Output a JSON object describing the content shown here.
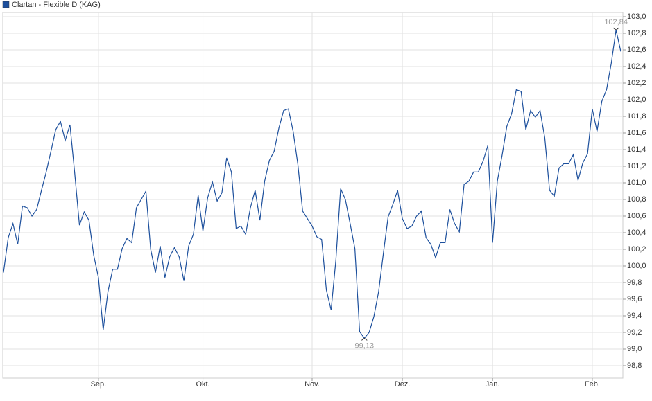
{
  "chart_data": {
    "type": "line",
    "categories": [
      null,
      null,
      null,
      null,
      null,
      null,
      null,
      null,
      null,
      null,
      null,
      null,
      null,
      null,
      null,
      null,
      null,
      null,
      null,
      null,
      "Sep.",
      null,
      null,
      null,
      null,
      null,
      null,
      null,
      null,
      null,
      null,
      null,
      null,
      null,
      null,
      null,
      null,
      null,
      null,
      null,
      null,
      null,
      "Okt.",
      null,
      null,
      null,
      null,
      null,
      null,
      null,
      null,
      null,
      null,
      null,
      null,
      null,
      null,
      null,
      null,
      null,
      null,
      null,
      null,
      null,
      null,
      "Nov.",
      null,
      null,
      null,
      null,
      null,
      null,
      null,
      null,
      null,
      null,
      null,
      null,
      null,
      null,
      null,
      null,
      null,
      null,
      "Dez.",
      null,
      null,
      null,
      null,
      null,
      null,
      null,
      null,
      null,
      null,
      null,
      null,
      null,
      null,
      null,
      null,
      null,
      null,
      "Jan.",
      null,
      null,
      null,
      null,
      null,
      null,
      null,
      null,
      null,
      null,
      null,
      null,
      null,
      null,
      null,
      null,
      null,
      null,
      null,
      null,
      "Feb.",
      null,
      null,
      null,
      null,
      null,
      null
    ],
    "series": [
      {
        "name": "Clartan - Flexible D (KAG)",
        "color": "#1c4f9c",
        "values": [
          99.92,
          100.34,
          100.51,
          100.26,
          100.72,
          100.7,
          100.6,
          100.68,
          100.91,
          101.13,
          101.38,
          101.64,
          101.74,
          101.51,
          101.7,
          101.12,
          100.49,
          100.65,
          100.55,
          100.13,
          99.86,
          99.23,
          99.69,
          99.96,
          99.96,
          100.21,
          100.33,
          100.28,
          100.7,
          100.8,
          100.9,
          100.2,
          99.92,
          100.24,
          99.86,
          100.11,
          100.22,
          100.11,
          99.82,
          100.24,
          100.38,
          100.85,
          100.42,
          100.82,
          101.01,
          100.78,
          100.88,
          101.3,
          101.13,
          100.45,
          100.48,
          100.38,
          100.7,
          100.91,
          100.55,
          101.02,
          101.27,
          101.38,
          101.66,
          101.87,
          101.89,
          101.62,
          101.22,
          100.66,
          100.57,
          100.48,
          100.35,
          100.32,
          99.71,
          99.47,
          100.07,
          100.93,
          100.8,
          100.51,
          100.21,
          99.21,
          99.13,
          99.2,
          99.39,
          99.69,
          100.15,
          100.59,
          100.74,
          100.91,
          100.57,
          100.45,
          100.48,
          100.6,
          100.66,
          100.34,
          100.26,
          100.1,
          100.28,
          100.28,
          100.68,
          100.51,
          100.41,
          100.98,
          101.02,
          101.13,
          101.13,
          101.26,
          101.45,
          100.28,
          101.02,
          101.33,
          101.68,
          101.83,
          102.12,
          102.1,
          101.64,
          101.87,
          101.79,
          101.87,
          101.54,
          100.91,
          100.84,
          101.18,
          101.23,
          101.23,
          101.34,
          101.03,
          101.24,
          101.35,
          101.89,
          101.62,
          101.98,
          102.12,
          102.44,
          102.84,
          102.58
        ],
        "value_labels": [
          null,
          null,
          null,
          null,
          null,
          null,
          null,
          null,
          null,
          null,
          null,
          null,
          null,
          null,
          null,
          null,
          null,
          null,
          null,
          null,
          null,
          null,
          null,
          null,
          null,
          null,
          null,
          null,
          null,
          null,
          null,
          null,
          null,
          null,
          null,
          null,
          null,
          null,
          null,
          null,
          null,
          null,
          null,
          null,
          null,
          null,
          null,
          null,
          null,
          null,
          null,
          null,
          null,
          null,
          null,
          null,
          null,
          null,
          null,
          null,
          null,
          null,
          null,
          null,
          null,
          null,
          null,
          null,
          null,
          null,
          null,
          null,
          null,
          null,
          null,
          null,
          "99,13",
          null,
          null,
          null,
          null,
          null,
          null,
          null,
          null,
          null,
          null,
          null,
          null,
          null,
          null,
          null,
          null,
          null,
          null,
          null,
          null,
          null,
          null,
          null,
          null,
          null,
          null,
          null,
          null,
          null,
          null,
          null,
          null,
          null,
          null,
          null,
          null,
          null,
          null,
          null,
          null,
          null,
          null,
          null,
          null,
          null,
          null,
          null,
          null,
          null,
          null,
          null,
          null,
          "102,84",
          null
        ]
      }
    ],
    "ylim": [
      98.65,
      103.05
    ],
    "yticks": [
      {
        "value": 98.8,
        "label": "98,8"
      },
      {
        "value": 99.0,
        "label": "99,0"
      },
      {
        "value": 99.2,
        "label": "99,2"
      },
      {
        "value": 99.4,
        "label": "99,4"
      },
      {
        "value": 99.6,
        "label": "99,6"
      },
      {
        "value": 99.8,
        "label": "99,8"
      },
      {
        "value": 100.0,
        "label": "100,0"
      },
      {
        "value": 100.2,
        "label": "100,2"
      },
      {
        "value": 100.4,
        "label": "100,4"
      },
      {
        "value": 100.6,
        "label": "100,6"
      },
      {
        "value": 100.8,
        "label": "100,8"
      },
      {
        "value": 101.0,
        "label": "101,0"
      },
      {
        "value": 101.2,
        "label": "101,2"
      },
      {
        "value": 101.4,
        "label": "101,4"
      },
      {
        "value": 101.6,
        "label": "101,6"
      },
      {
        "value": 101.8,
        "label": "101,8"
      },
      {
        "value": 102.0,
        "label": "102,0"
      },
      {
        "value": 102.2,
        "label": "102,2"
      },
      {
        "value": 102.4,
        "label": "102,4"
      },
      {
        "value": 102.6,
        "label": "102,6"
      },
      {
        "value": 102.8,
        "label": "102,8"
      },
      {
        "value": 103.0,
        "label": "103,0"
      }
    ],
    "grid": true
  }
}
